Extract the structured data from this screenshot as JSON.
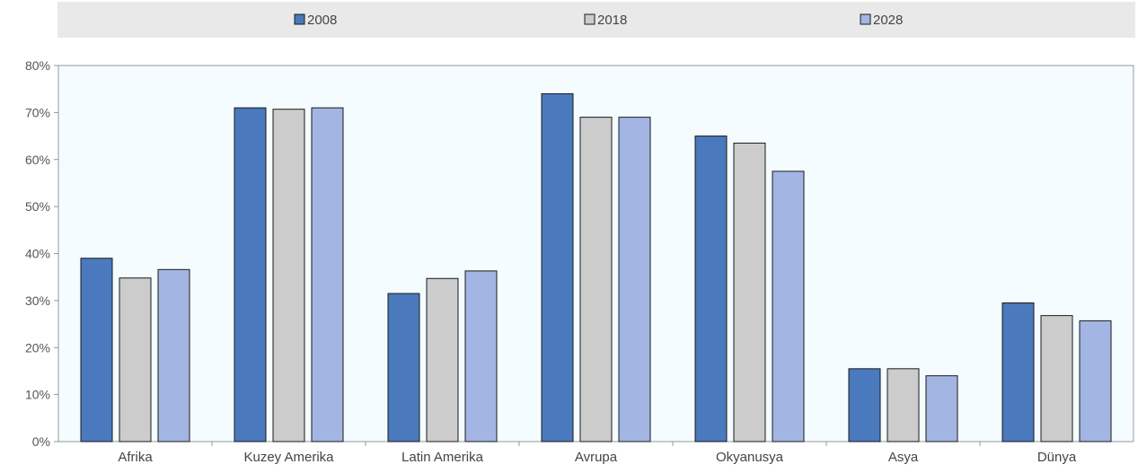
{
  "chart_data": {
    "type": "bar",
    "categories": [
      "Afrika",
      "Kuzey Amerika",
      "Latin Amerika",
      "Avrupa",
      "Okyanusya",
      "Asya",
      "Dünya"
    ],
    "series": [
      {
        "name": "2008",
        "values": [
          39,
          71,
          31.5,
          74,
          65,
          15.5,
          29.5
        ],
        "color": "#4a79bd"
      },
      {
        "name": "2018",
        "values": [
          34.8,
          70.7,
          34.7,
          69,
          63.5,
          15.5,
          26.8
        ],
        "color": "#cccccc"
      },
      {
        "name": "2028",
        "values": [
          36.6,
          71,
          36.3,
          69,
          57.5,
          14,
          25.7
        ],
        "color": "#a3b5e3"
      }
    ],
    "yticks": [
      "0%",
      "10%",
      "20%",
      "30%",
      "40%",
      "50%",
      "60%",
      "70%",
      "80%"
    ],
    "ylim": [
      0,
      80
    ],
    "grid": false,
    "legend_position": "top",
    "plot_background": "#f4fcff",
    "legend_background": "#e9e9e9"
  }
}
